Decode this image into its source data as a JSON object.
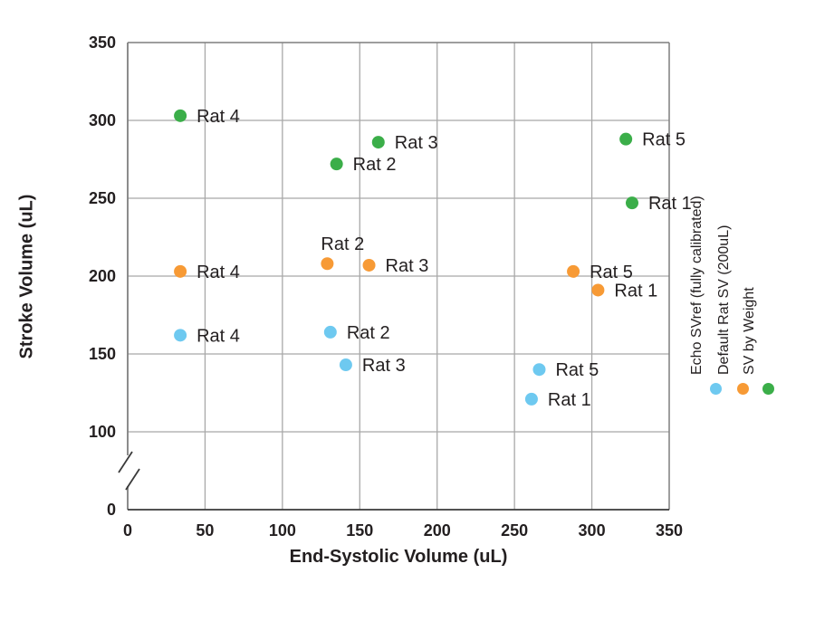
{
  "chart_data": {
    "type": "scatter",
    "title": "",
    "xlabel": "End-Systolic Volume (uL)",
    "ylabel": "Stroke Volume (uL)",
    "xlim": [
      0,
      350
    ],
    "ylim": [
      0,
      350
    ],
    "x_ticks": [
      0,
      50,
      100,
      150,
      200,
      250,
      300,
      350
    ],
    "y_ticks": [
      0,
      100,
      150,
      200,
      250,
      300,
      350
    ],
    "y_axis_break": {
      "between": [
        0,
        100
      ]
    },
    "grid": true,
    "legend_position": "right, labels rotated 90° with marker below",
    "colors": {
      "text": "#231f20",
      "grid": "#a8a8a8",
      "border": "#7f7f7f",
      "axis": "#3a3a3a"
    },
    "series": [
      {
        "name": "Echo SVref (fully calibrated)",
        "color": "#6ec9f0",
        "points": [
          {
            "label": "Rat 4",
            "x": 34,
            "y": 162,
            "label_pos": "right"
          },
          {
            "label": "Rat 2",
            "x": 131,
            "y": 164,
            "label_pos": "right"
          },
          {
            "label": "Rat 3",
            "x": 141,
            "y": 143,
            "label_pos": "right"
          },
          {
            "label": "Rat 5",
            "x": 266,
            "y": 140,
            "label_pos": "right"
          },
          {
            "label": "Rat 1",
            "x": 261,
            "y": 121,
            "label_pos": "right"
          }
        ]
      },
      {
        "name": "Default Rat SV (200uL)",
        "color": "#f79a35",
        "points": [
          {
            "label": "Rat 4",
            "x": 34,
            "y": 203,
            "label_pos": "right"
          },
          {
            "label": "Rat 2",
            "x": 129,
            "y": 208,
            "label_pos": "above"
          },
          {
            "label": "Rat 3",
            "x": 156,
            "y": 207,
            "label_pos": "right"
          },
          {
            "label": "Rat 5",
            "x": 288,
            "y": 203,
            "label_pos": "right"
          },
          {
            "label": "Rat 1",
            "x": 304,
            "y": 191,
            "label_pos": "right"
          }
        ]
      },
      {
        "name": "SV by Weight",
        "color": "#3bae49",
        "points": [
          {
            "label": "Rat 4",
            "x": 34,
            "y": 303,
            "label_pos": "right"
          },
          {
            "label": "Rat 2",
            "x": 135,
            "y": 272,
            "label_pos": "right"
          },
          {
            "label": "Rat 3",
            "x": 162,
            "y": 286,
            "label_pos": "right"
          },
          {
            "label": "Rat 5",
            "x": 322,
            "y": 288,
            "label_pos": "right"
          },
          {
            "label": "Rat 1",
            "x": 326,
            "y": 247,
            "label_pos": "right"
          }
        ]
      }
    ]
  }
}
